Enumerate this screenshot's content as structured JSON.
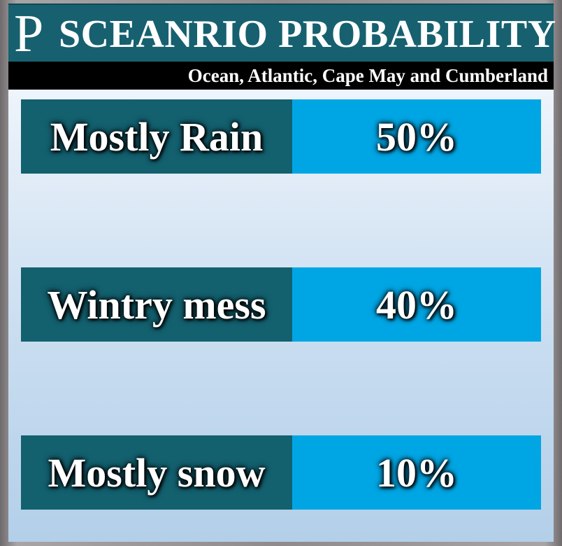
{
  "header": {
    "logo": "P",
    "title": "SCEANRIO PROBABILITY",
    "subtitle": "Ocean, Atlantic, Cape May and Cumberland"
  },
  "rows": [
    {
      "label": "Mostly Rain",
      "value": "50%"
    },
    {
      "label": "Wintry mess",
      "value": "40%"
    },
    {
      "label": "Mostly snow",
      "value": "10%"
    }
  ]
}
